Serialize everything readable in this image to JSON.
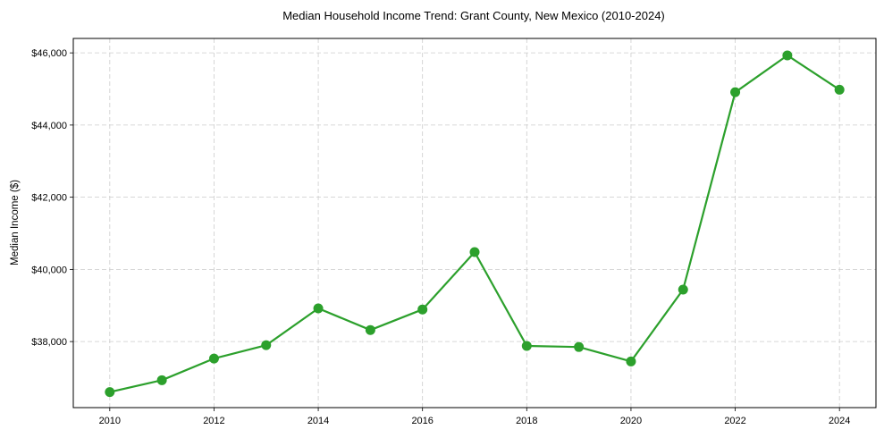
{
  "chart_data": {
    "type": "line",
    "title": "Median Household Income Trend: Grant County, New Mexico (2010-2024)",
    "xlabel": "",
    "ylabel": "Median Income ($)",
    "x": [
      2010,
      2011,
      2012,
      2013,
      2014,
      2015,
      2016,
      2017,
      2018,
      2019,
      2020,
      2021,
      2022,
      2023,
      2024
    ],
    "series": [
      {
        "name": "Median Household Income",
        "color": "#2ca02c",
        "values": [
          36600,
          36930,
          37530,
          37900,
          38920,
          38320,
          38890,
          40480,
          37880,
          37850,
          37450,
          39440,
          44910,
          45930,
          44980
        ]
      }
    ],
    "xticks": [
      2010,
      2012,
      2014,
      2016,
      2018,
      2020,
      2022,
      2024
    ],
    "xtick_labels": [
      "2010",
      "2012",
      "2014",
      "2016",
      "2018",
      "2020",
      "2022",
      "2024"
    ],
    "yticks": [
      38000,
      40000,
      42000,
      44000,
      46000
    ],
    "ytick_labels": [
      "$38,000",
      "$40,000",
      "$42,000",
      "$44,000",
      "$46,000"
    ],
    "xlim": [
      2009.3,
      2024.7
    ],
    "ylim": [
      36170,
      46400
    ],
    "grid": true,
    "legend": false
  }
}
